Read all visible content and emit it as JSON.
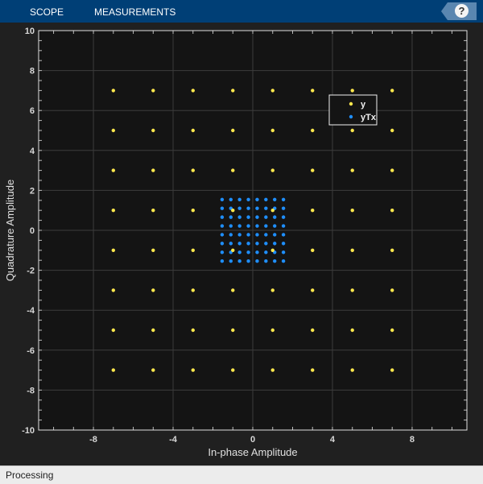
{
  "toolbar": {
    "tabs": [
      {
        "label": "SCOPE"
      },
      {
        "label": "MEASUREMENTS"
      }
    ],
    "help_icon": "question-mark-icon"
  },
  "status": {
    "text": "Processing"
  },
  "colors": {
    "toolbar": "#003f76",
    "y": "#ffe84d",
    "yTx": "#1f8fff",
    "plot_bg": "#141414"
  },
  "chart_data": {
    "type": "scatter",
    "xlabel": "In-phase Amplitude",
    "ylabel": "Quadrature Amplitude",
    "xlim": [
      -10.75,
      10.75
    ],
    "ylim": [
      -10,
      10
    ],
    "xticks": [
      -8,
      -4,
      0,
      4,
      8
    ],
    "yticks": [
      -10,
      -8,
      -6,
      -4,
      -2,
      0,
      2,
      4,
      6,
      8,
      10
    ],
    "grid": true,
    "legend_placement": "top-right",
    "series": [
      {
        "name": "y",
        "levels": [
          -7,
          -5,
          -3,
          -1,
          1,
          3,
          5,
          7
        ],
        "grid_of_points": "I x Q"
      },
      {
        "name": "yTx",
        "levels": [
          -1.54,
          -1.1,
          -0.66,
          -0.22,
          0.22,
          0.66,
          1.1,
          1.54
        ],
        "grid_of_points": "I x Q"
      }
    ]
  }
}
